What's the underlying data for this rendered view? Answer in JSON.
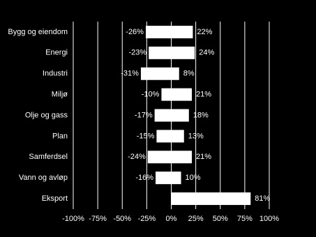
{
  "chart_data": {
    "type": "diverging-bar",
    "categories": [
      "Bygg og eiendom",
      "Energi",
      "Industri",
      "Miljø",
      "Olje og gass",
      "Plan",
      "Samferdsel",
      "Vann og avløp",
      "Eksport"
    ],
    "series": [
      {
        "color": "#ffffff",
        "values": [
          -26,
          -23,
          -31,
          -10,
          -17,
          -15,
          -24,
          -16,
          null
        ],
        "value_labels": [
          "-26%",
          "-23%",
          "-31%",
          "-10%",
          "-17%",
          "-15%",
          "-24%",
          "-16%",
          null
        ]
      },
      {
        "color": "#ffffff",
        "values": [
          22,
          24,
          8,
          21,
          18,
          13,
          21,
          10,
          81
        ],
        "value_labels": [
          "22%",
          "24%",
          "8%",
          "21%",
          "18%",
          "13%",
          "21%",
          "10%",
          "81%"
        ]
      }
    ],
    "xlim": [
      -100,
      100
    ],
    "xticks": [
      {
        "value": -100,
        "label": "-100%"
      },
      {
        "value": -75,
        "label": "-75%"
      },
      {
        "value": -50,
        "label": "-50%"
      },
      {
        "value": -25,
        "label": "-25%"
      },
      {
        "value": 0,
        "label": "0%"
      },
      {
        "value": 25,
        "label": "25%"
      },
      {
        "value": 50,
        "label": "50%"
      },
      {
        "value": 75,
        "label": "75%"
      },
      {
        "value": 100,
        "label": "100%"
      }
    ],
    "grid": true
  }
}
